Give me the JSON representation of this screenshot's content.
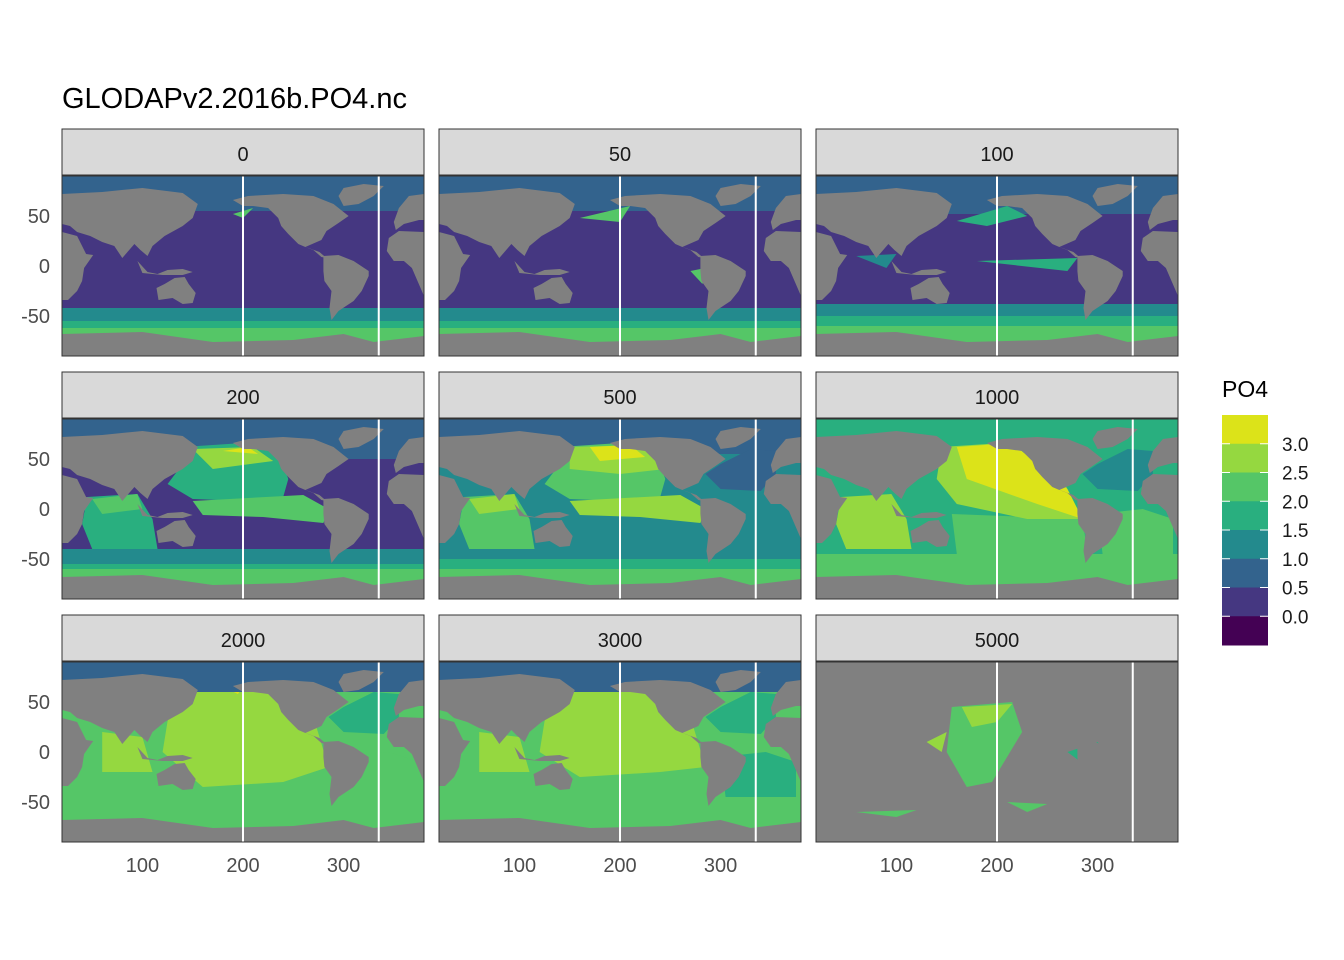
{
  "chart_data": {
    "type": "heatmap",
    "subtype": "faceted filled-contour world maps",
    "title": "GLODAPv2.2016b.PO4.nc",
    "facets": [
      "0",
      "50",
      "100",
      "200",
      "500",
      "1000",
      "2000",
      "3000",
      "5000"
    ],
    "x_ticks": [
      "100",
      "200",
      "300"
    ],
    "y_ticks": [
      "50",
      "0",
      "-50"
    ],
    "xlim": [
      20,
      380
    ],
    "ylim": [
      -90,
      90
    ],
    "vertical_reference_lines": [
      200,
      335
    ],
    "legend": {
      "title": "PO4",
      "position": "right",
      "labels": [
        "3.0",
        "2.5",
        "2.0",
        "1.5",
        "1.0",
        "0.5",
        "0.0"
      ]
    },
    "colors": {
      "land": "#808080",
      "strip_fill": "#d9d9d9",
      "reference_line": "#ffffff",
      "levels": [
        "#dce319",
        "#95d840",
        "#55c667",
        "#29af7f",
        "#238a8d",
        "#33638d",
        "#453781",
        "#440154"
      ]
    }
  }
}
